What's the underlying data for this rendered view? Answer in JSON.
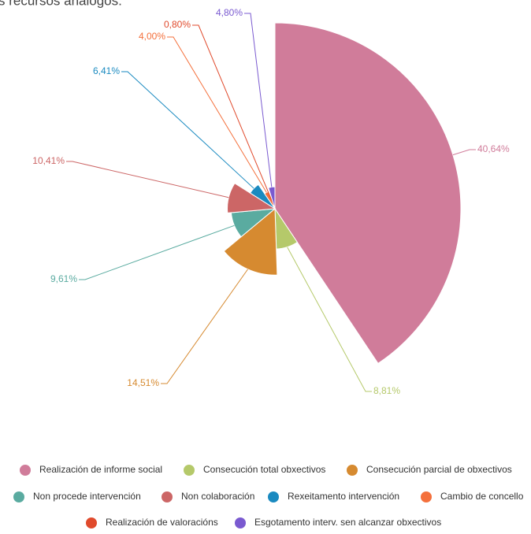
{
  "chart_data": {
    "type": "pie",
    "title": "s recursos análogos.",
    "categories": [
      "Realización de informe social",
      "Consecución total obxectivos",
      "Consecución parcial de obxectivos",
      "Non procede intervención",
      "Non colaboración",
      "Rexeitamento intervención",
      "Cambio de concello",
      "Realización de valoracións",
      "Esgotamento interv. sen alcanzar obxectivos"
    ],
    "values": [
      40.64,
      8.81,
      14.51,
      9.61,
      10.41,
      6.41,
      4.0,
      0.8,
      4.8
    ],
    "value_labels": [
      "40,64%",
      "8,81%",
      "14,51%",
      "9,61%",
      "10,41%",
      "6,41%",
      "4,00%",
      "0,80%",
      "4,80%"
    ],
    "colors": [
      "#d07c9a",
      "#b5c96a",
      "#d68a30",
      "#5aaba0",
      "#cc6666",
      "#1a8ac0",
      "#f4703c",
      "#e04a2c",
      "#7a5ad0"
    ],
    "rose": true
  }
}
